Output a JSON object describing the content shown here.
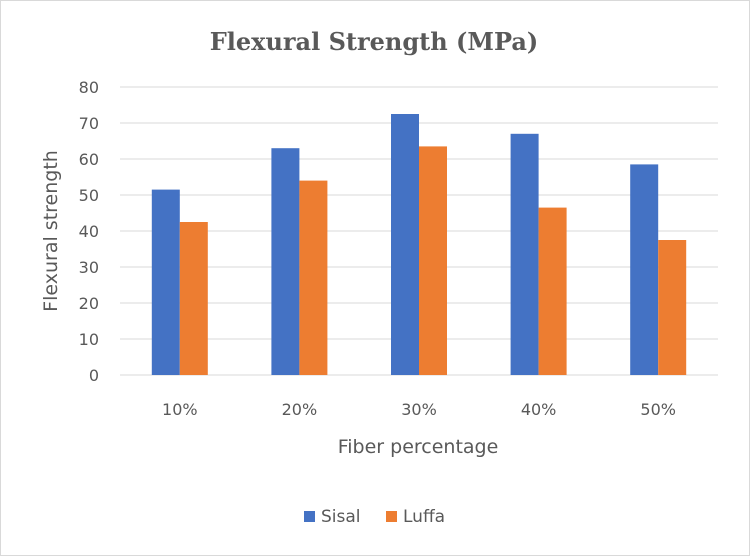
{
  "chart_data": {
    "type": "bar",
    "title": "Flexural Strength (MPa)",
    "xlabel": "Fiber percentage",
    "ylabel": "Flexural strength",
    "categories": [
      "10%",
      "20%",
      "30%",
      "40%",
      "50%"
    ],
    "series": [
      {
        "name": "Sisal",
        "values": [
          51.5,
          63,
          72.5,
          67,
          58.5
        ],
        "color": "#4472C4"
      },
      {
        "name": "Luffa",
        "values": [
          42.5,
          54,
          63.5,
          46.5,
          37.5
        ],
        "color": "#ED7D31"
      }
    ],
    "ylim": [
      0,
      80
    ],
    "yticks": [
      0,
      10,
      20,
      30,
      40,
      50,
      60,
      70,
      80
    ],
    "grid": true,
    "legend_position": "bottom",
    "colors": {
      "grid": "#d9d9d9",
      "text": "#595959",
      "border": "#d9d9d9"
    }
  }
}
